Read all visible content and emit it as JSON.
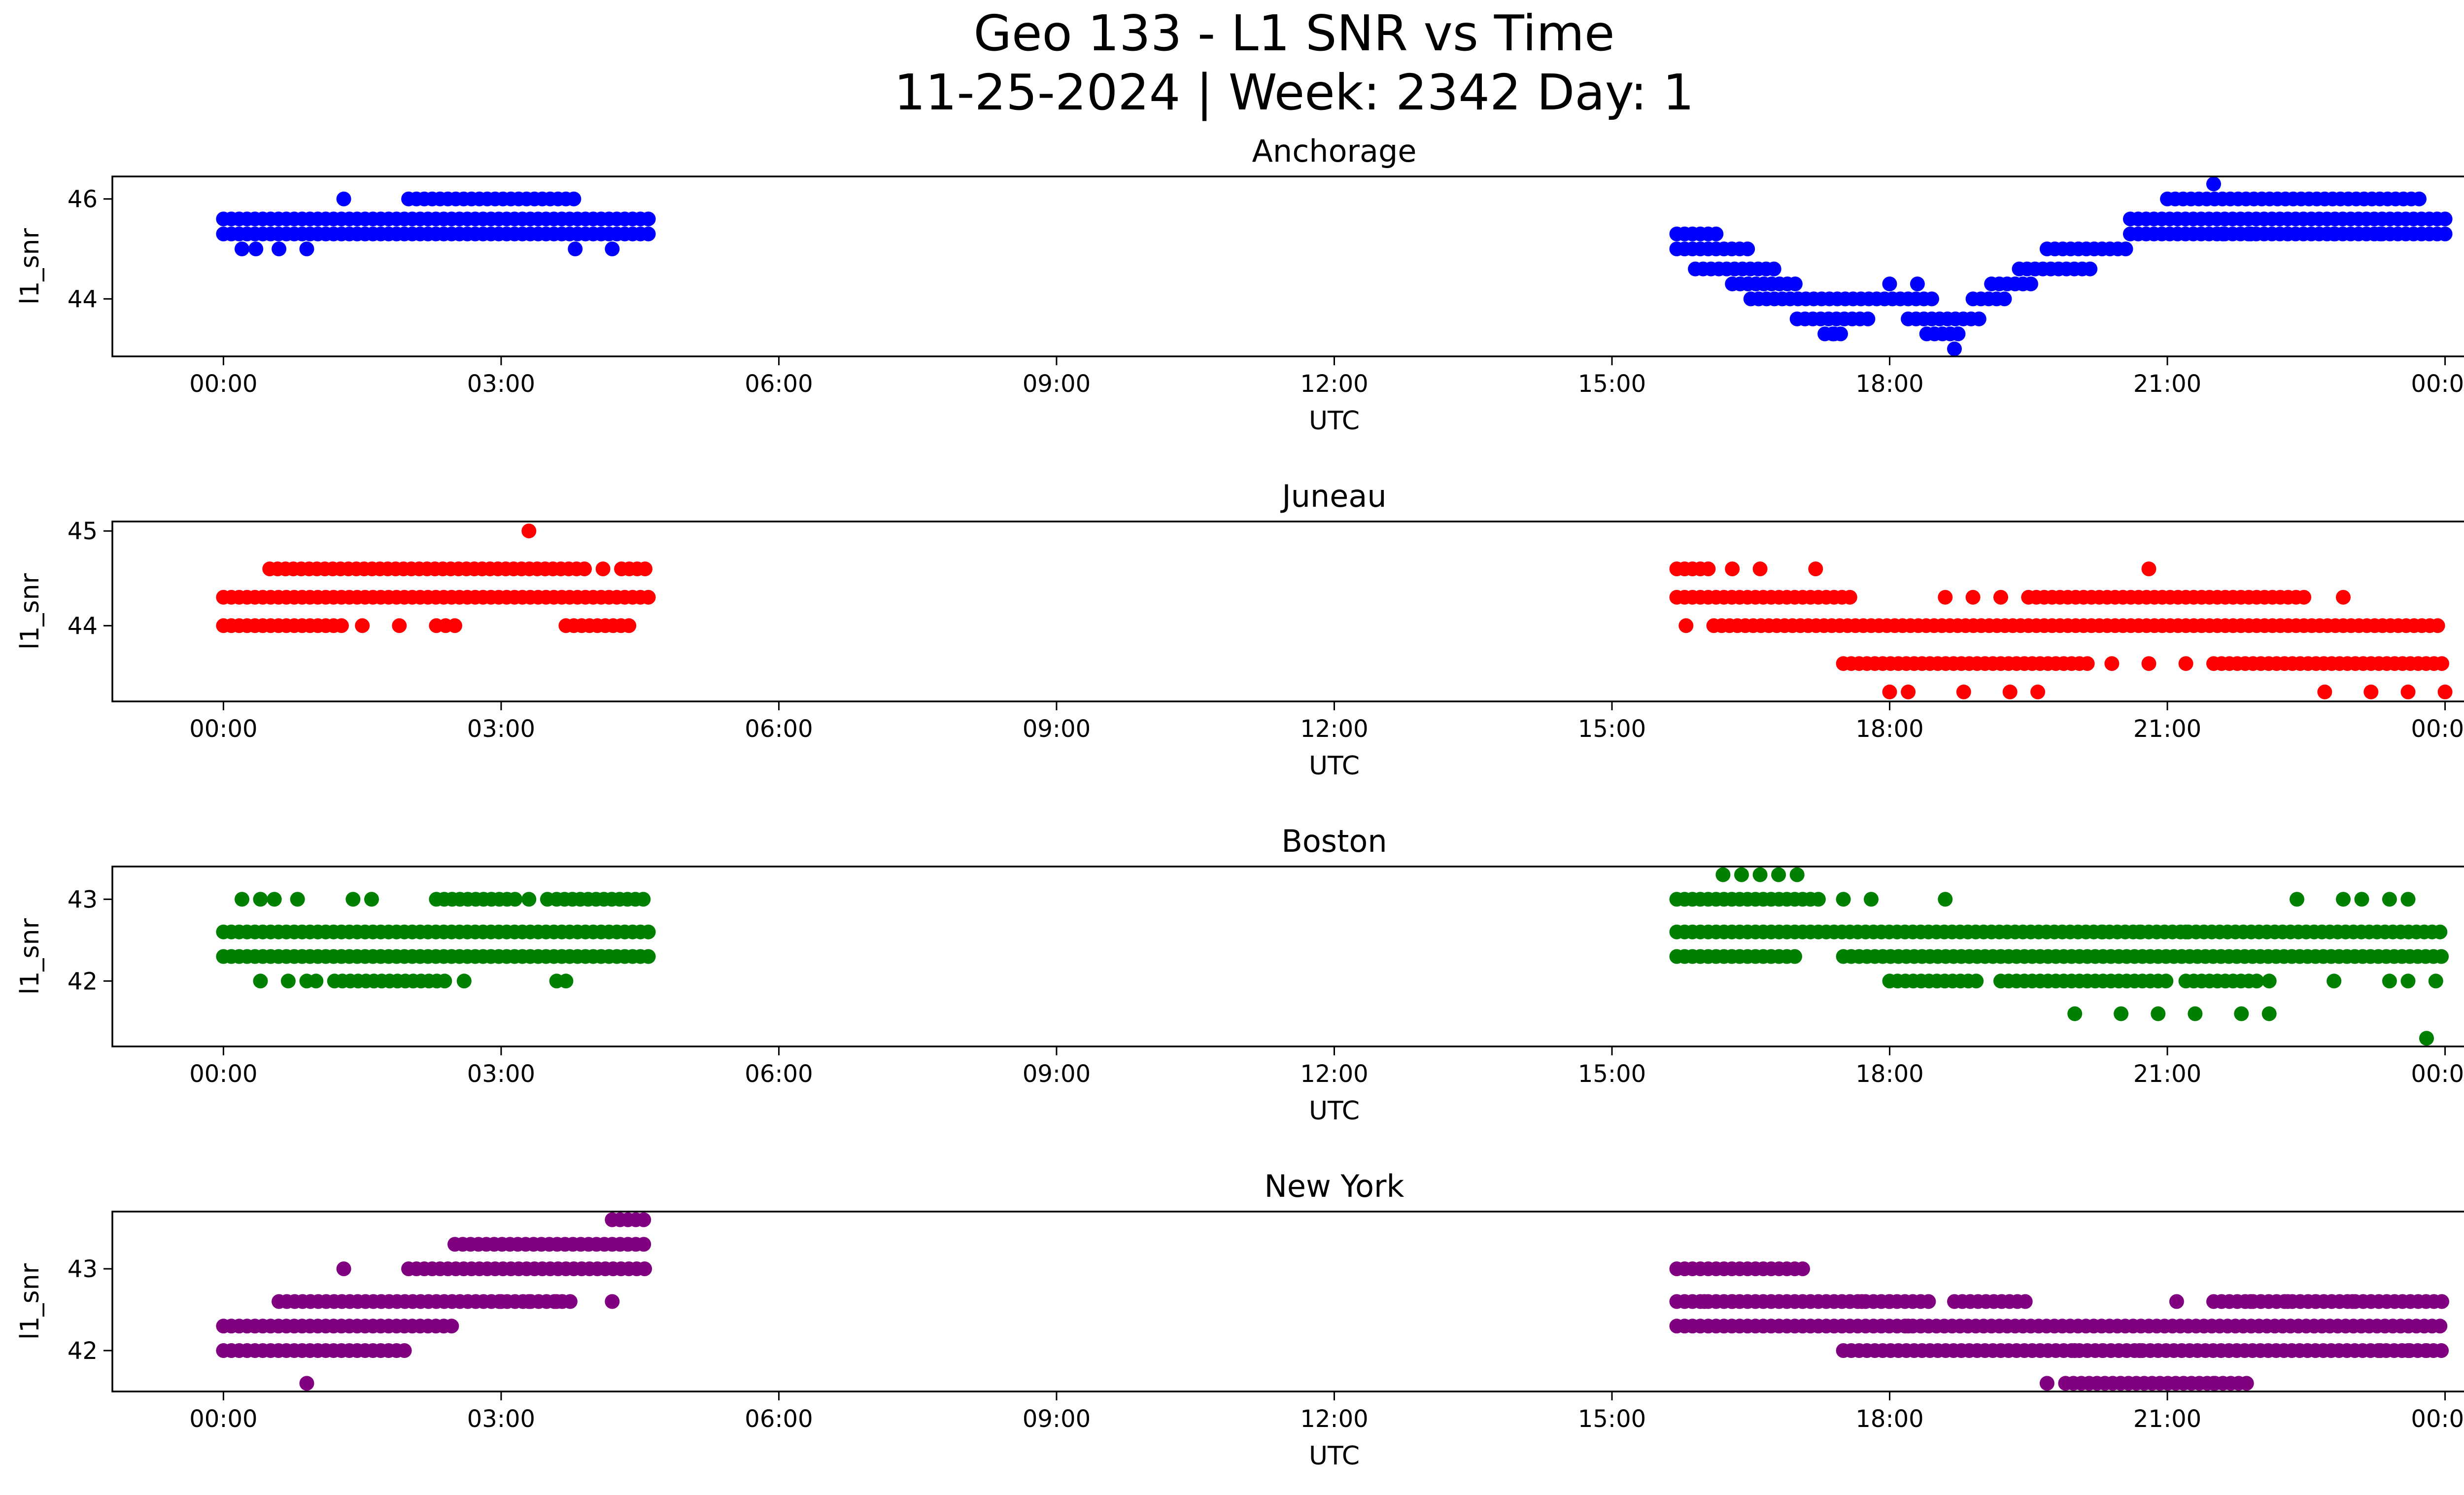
{
  "title": {
    "line1": "Geo 133 - L1 SNR vs Time",
    "line2": "11-25-2024 | Week: 2342 Day: 1"
  },
  "chart_data": [
    {
      "type": "scatter",
      "title": "Anchorage",
      "xlabel": "UTC",
      "ylabel": "l1_snr",
      "color": "#0000ff",
      "x_ticks": [
        "00:00",
        "03:00",
        "06:00",
        "09:00",
        "12:00",
        "15:00",
        "18:00",
        "21:00",
        "00:00"
      ],
      "y_ticks": [
        44,
        46
      ],
      "ylim": [
        42.85,
        46.45
      ],
      "xlim_hours": [
        -1.2,
        25.2
      ],
      "x_unit": "hours UTC",
      "segments": [
        {
          "level": 45.3,
          "ranges": [
            [
              0.0,
              4.6
            ],
            [
              15.7,
              16.2
            ],
            [
              20.6,
              24.0
            ]
          ]
        },
        {
          "level": 45.6,
          "ranges": [
            [
              0.0,
              4.6
            ],
            [
              20.6,
              24.0
            ]
          ]
        },
        {
          "level": 46.0,
          "ranges": [
            [
              2.0,
              3.8
            ],
            [
              21.0,
              23.8
            ]
          ]
        },
        {
          "level": 45.0,
          "ranges": [
            [
              15.7,
              16.5
            ],
            [
              19.7,
              20.6
            ]
          ]
        },
        {
          "level": 44.6,
          "ranges": [
            [
              15.9,
              16.8
            ],
            [
              19.4,
              20.2
            ]
          ]
        },
        {
          "level": 44.3,
          "ranges": [
            [
              16.3,
              17.0
            ],
            [
              19.1,
              19.6
            ]
          ]
        },
        {
          "level": 44.0,
          "ranges": [
            [
              16.5,
              18.5
            ],
            [
              18.9,
              19.3
            ]
          ]
        },
        {
          "level": 43.6,
          "ranges": [
            [
              17.0,
              17.8
            ],
            [
              18.2,
              19.0
            ]
          ]
        },
        {
          "level": 43.3,
          "ranges": [
            [
              17.3,
              17.5
            ],
            [
              18.4,
              18.8
            ]
          ]
        }
      ],
      "points": [
        [
          0.2,
          45.0
        ],
        [
          0.35,
          45.0
        ],
        [
          0.6,
          45.0
        ],
        [
          0.9,
          45.0
        ],
        [
          1.3,
          46.0
        ],
        [
          3.8,
          45.0
        ],
        [
          4.2,
          45.0
        ],
        [
          17.4,
          43.3
        ],
        [
          18.0,
          44.3
        ],
        [
          18.3,
          44.3
        ],
        [
          18.7,
          43.0
        ],
        [
          21.5,
          46.3
        ],
        [
          21.6,
          45.3
        ],
        [
          21.9,
          45.3
        ],
        [
          22.3,
          45.3
        ],
        [
          22.8,
          45.3
        ],
        [
          23.3,
          45.3
        ]
      ]
    },
    {
      "type": "scatter",
      "title": "Juneau",
      "xlabel": "UTC",
      "ylabel": "l1_snr",
      "color": "#ff0000",
      "x_ticks": [
        "00:00",
        "03:00",
        "06:00",
        "09:00",
        "12:00",
        "15:00",
        "18:00",
        "21:00",
        "00:00"
      ],
      "y_ticks": [
        44,
        45
      ],
      "ylim": [
        43.2,
        45.1
      ],
      "xlim_hours": [
        -1.2,
        25.2
      ],
      "x_unit": "hours UTC",
      "segments": [
        {
          "level": 44.3,
          "ranges": [
            [
              0.0,
              4.6
            ],
            [
              15.7,
              17.6
            ],
            [
              19.5,
              22.5
            ]
          ]
        },
        {
          "level": 44.6,
          "ranges": [
            [
              0.5,
              3.9
            ],
            [
              4.3,
              4.6
            ],
            [
              15.7,
              16.1
            ]
          ]
        },
        {
          "level": 44.0,
          "ranges": [
            [
              0.0,
              1.3
            ],
            [
              3.7,
              4.4
            ],
            [
              16.1,
              24.0
            ]
          ]
        },
        {
          "level": 43.6,
          "ranges": [
            [
              17.5,
              20.2
            ],
            [
              21.5,
              24.0
            ]
          ]
        }
      ],
      "points": [
        [
          1.5,
          44.0
        ],
        [
          1.9,
          44.0
        ],
        [
          2.3,
          44.0
        ],
        [
          2.5,
          44.0
        ],
        [
          2.4,
          44.0
        ],
        [
          3.3,
          45.0
        ],
        [
          4.1,
          44.6
        ],
        [
          15.8,
          44.0
        ],
        [
          16.3,
          44.6
        ],
        [
          16.6,
          44.6
        ],
        [
          17.2,
          44.6
        ],
        [
          18.2,
          43.3
        ],
        [
          18.0,
          43.3
        ],
        [
          18.6,
          44.3
        ],
        [
          18.9,
          44.3
        ],
        [
          19.2,
          44.3
        ],
        [
          18.8,
          43.3
        ],
        [
          19.3,
          43.3
        ],
        [
          19.6,
          43.3
        ],
        [
          20.4,
          43.6
        ],
        [
          20.8,
          44.6
        ],
        [
          20.8,
          43.6
        ],
        [
          21.2,
          43.6
        ],
        [
          22.9,
          44.3
        ],
        [
          22.7,
          43.3
        ],
        [
          23.2,
          43.3
        ],
        [
          23.6,
          43.3
        ],
        [
          24.0,
          43.3
        ]
      ]
    },
    {
      "type": "scatter",
      "title": "Boston",
      "xlabel": "UTC",
      "ylabel": "l1_snr",
      "color": "#008000",
      "x_ticks": [
        "00:00",
        "03:00",
        "06:00",
        "09:00",
        "12:00",
        "15:00",
        "18:00",
        "21:00",
        "00:00"
      ],
      "y_ticks": [
        42,
        43
      ],
      "ylim": [
        41.2,
        43.4
      ],
      "xlim_hours": [
        -1.2,
        25.2
      ],
      "x_unit": "hours UTC",
      "segments": [
        {
          "level": 42.6,
          "ranges": [
            [
              0.0,
              4.6
            ],
            [
              15.7,
              24.0
            ]
          ]
        },
        {
          "level": 42.3,
          "ranges": [
            [
              0.0,
              4.6
            ],
            [
              15.7,
              17.0
            ],
            [
              17.5,
              24.0
            ]
          ]
        },
        {
          "level": 43.0,
          "ranges": [
            [
              2.3,
              3.2
            ],
            [
              3.6,
              4.6
            ],
            [
              15.7,
              17.3
            ]
          ]
        },
        {
          "level": 42.0,
          "ranges": [
            [
              1.2,
              2.4
            ],
            [
              18.0,
              19.0
            ],
            [
              19.2,
              21.0
            ],
            [
              21.2,
              22.0
            ]
          ]
        }
      ],
      "points": [
        [
          0.2,
          43.0
        ],
        [
          0.4,
          43.0
        ],
        [
          0.55,
          43.0
        ],
        [
          0.8,
          43.0
        ],
        [
          1.4,
          43.0
        ],
        [
          1.6,
          43.0
        ],
        [
          3.3,
          43.0
        ],
        [
          3.5,
          43.0
        ],
        [
          0.4,
          42.0
        ],
        [
          0.7,
          42.0
        ],
        [
          0.9,
          42.0
        ],
        [
          1.0,
          42.0
        ],
        [
          2.6,
          42.0
        ],
        [
          3.6,
          42.0
        ],
        [
          3.7,
          42.0
        ],
        [
          16.2,
          43.3
        ],
        [
          16.4,
          43.3
        ],
        [
          16.6,
          43.3
        ],
        [
          16.8,
          43.3
        ],
        [
          17.0,
          43.3
        ],
        [
          17.5,
          43.0
        ],
        [
          17.8,
          43.0
        ],
        [
          18.6,
          43.0
        ],
        [
          20.3,
          42.6
        ],
        [
          20.7,
          42.6
        ],
        [
          21.2,
          42.6
        ],
        [
          20.0,
          41.6
        ],
        [
          20.5,
          41.6
        ],
        [
          20.9,
          41.6
        ],
        [
          21.3,
          41.6
        ],
        [
          21.8,
          41.6
        ],
        [
          22.1,
          42.0
        ],
        [
          22.1,
          41.6
        ],
        [
          22.4,
          43.0
        ],
        [
          22.9,
          43.0
        ],
        [
          23.1,
          43.0
        ],
        [
          23.4,
          43.0
        ],
        [
          23.6,
          43.0
        ],
        [
          23.4,
          42.0
        ],
        [
          23.6,
          42.0
        ],
        [
          23.9,
          42.0
        ],
        [
          22.8,
          42.0
        ],
        [
          23.8,
          41.3
        ]
      ]
    },
    {
      "type": "scatter",
      "title": "New York",
      "xlabel": "UTC",
      "ylabel": "l1_snr",
      "color": "#800080",
      "x_ticks": [
        "00:00",
        "03:00",
        "06:00",
        "09:00",
        "12:00",
        "15:00",
        "18:00",
        "21:00",
        "00:00"
      ],
      "y_ticks": [
        42,
        43
      ],
      "ylim": [
        41.5,
        43.7
      ],
      "xlim_hours": [
        -1.2,
        25.2
      ],
      "x_unit": "hours UTC",
      "segments": [
        {
          "level": 42.3,
          "ranges": [
            [
              0.0,
              2.5
            ],
            [
              15.7,
              24.0
            ]
          ]
        },
        {
          "level": 42.0,
          "ranges": [
            [
              0.0,
              2.0
            ],
            [
              17.5,
              24.0
            ]
          ]
        },
        {
          "level": 42.6,
          "ranges": [
            [
              0.6,
              3.8
            ],
            [
              15.7,
              18.5
            ],
            [
              18.7,
              19.5
            ],
            [
              21.5,
              24.0
            ]
          ]
        },
        {
          "level": 43.0,
          "ranges": [
            [
              2.0,
              4.6
            ],
            [
              15.7,
              17.1
            ]
          ]
        },
        {
          "level": 43.3,
          "ranges": [
            [
              2.5,
              4.6
            ]
          ]
        },
        {
          "level": 43.6,
          "ranges": [
            [
              4.2,
              4.6
            ]
          ]
        },
        {
          "level": 41.6,
          "ranges": [
            [
              19.9,
              21.9
            ]
          ]
        }
      ],
      "points": [
        [
          0.9,
          41.6
        ],
        [
          1.3,
          43.0
        ],
        [
          4.2,
          42.6
        ],
        [
          3.0,
          42.6
        ],
        [
          3.3,
          42.6
        ],
        [
          3.6,
          42.6
        ],
        [
          16.0,
          42.6
        ],
        [
          16.3,
          42.6
        ],
        [
          17.7,
          42.6
        ],
        [
          18.0,
          42.6
        ],
        [
          18.2,
          42.3
        ],
        [
          19.7,
          41.6
        ],
        [
          20.0,
          42.0
        ],
        [
          20.3,
          42.0
        ],
        [
          20.7,
          42.0
        ],
        [
          21.1,
          42.6
        ],
        [
          21.5,
          41.6
        ],
        [
          21.9,
          42.6
        ],
        [
          22.3,
          42.6
        ],
        [
          22.6,
          42.6
        ],
        [
          23.0,
          42.6
        ],
        [
          23.3,
          42.0
        ],
        [
          23.6,
          42.0
        ],
        [
          23.8,
          42.0
        ]
      ]
    }
  ]
}
